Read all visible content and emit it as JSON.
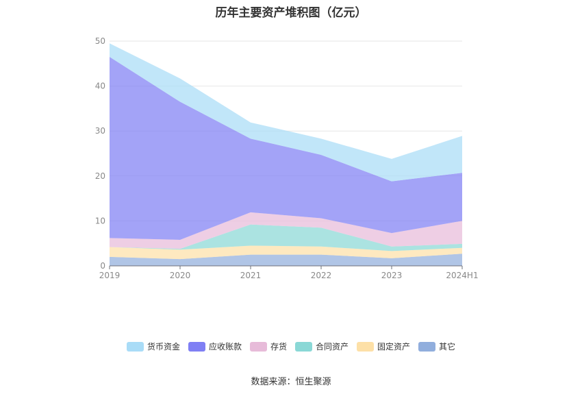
{
  "chart": {
    "title": "历年主要资产堆积图（亿元）"
  },
  "source": "数据来源：恒生聚源",
  "colors": [
    "#a9dcf7",
    "#7f7ff4",
    "#e7bbd9",
    "#8ad8d6",
    "#fde0a7",
    "#91aedd"
  ],
  "chart_data": {
    "type": "area",
    "stacked": true,
    "title": "历年主要资产堆积图（亿元）",
    "xlabel": "",
    "ylabel": "",
    "categories": [
      "2019",
      "2020",
      "2021",
      "2022",
      "2023",
      "2024H1"
    ],
    "ylim": [
      0,
      50
    ],
    "yticks": [
      0,
      10,
      20,
      30,
      40,
      50
    ],
    "grid": true,
    "legend_position": "bottom",
    "series": [
      {
        "name": "其它",
        "values": [
          2.0,
          1.5,
          2.5,
          2.5,
          1.7,
          2.7
        ]
      },
      {
        "name": "固定资产",
        "values": [
          2.2,
          2.1,
          2.0,
          1.8,
          1.6,
          1.3
        ]
      },
      {
        "name": "合同资产",
        "values": [
          0.0,
          0.2,
          4.7,
          4.2,
          1.0,
          0.9
        ]
      },
      {
        "name": "存货",
        "values": [
          2.0,
          2.0,
          2.7,
          2.1,
          3.0,
          5.1
        ]
      },
      {
        "name": "应收账款",
        "values": [
          40.3,
          30.7,
          16.4,
          14.1,
          11.5,
          10.7
        ]
      },
      {
        "name": "货币资金",
        "values": [
          3.0,
          5.2,
          3.6,
          3.6,
          5.0,
          8.2
        ]
      }
    ]
  }
}
